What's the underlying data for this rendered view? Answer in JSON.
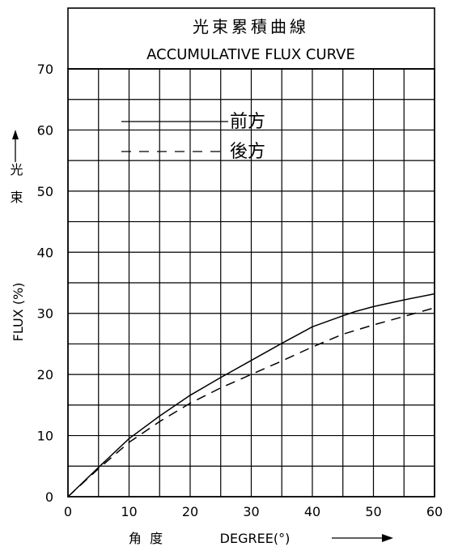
{
  "chart_data": {
    "type": "line",
    "title": "光束累積曲線",
    "subtitle": "ACCUMULATIVE FLUX CURVE",
    "xlabel": {
      "cn": "角  度",
      "en": "DEGREE(°)"
    },
    "ylabel": {
      "cn": "光束",
      "en": "FLUX (%)"
    },
    "xlim": [
      0,
      60
    ],
    "ylim": [
      0,
      70
    ],
    "x_ticks": [
      "0",
      "10",
      "20",
      "30",
      "40",
      "50",
      "60"
    ],
    "y_ticks": [
      "0",
      "10",
      "20",
      "30",
      "40",
      "50",
      "60",
      "70"
    ],
    "grid": true,
    "legend_position": "top-left",
    "series": [
      {
        "name": "前方",
        "style": "solid",
        "x": [
          0,
          5,
          10,
          15,
          20,
          25,
          30,
          35,
          40,
          45,
          47,
          50,
          55,
          60
        ],
        "y": [
          0,
          4.8,
          9.5,
          13.2,
          16.6,
          19.5,
          22.3,
          25.1,
          27.8,
          29.6,
          30.3,
          31.1,
          32.2,
          33.2
        ]
      },
      {
        "name": "後方",
        "style": "dashed",
        "x": [
          0,
          5,
          10,
          15,
          20,
          25,
          30,
          35,
          40,
          45,
          50,
          55,
          60
        ],
        "y": [
          0,
          4.6,
          8.9,
          12.3,
          15.3,
          17.8,
          20.0,
          22.2,
          24.5,
          26.6,
          28.1,
          29.5,
          30.9
        ]
      }
    ]
  }
}
